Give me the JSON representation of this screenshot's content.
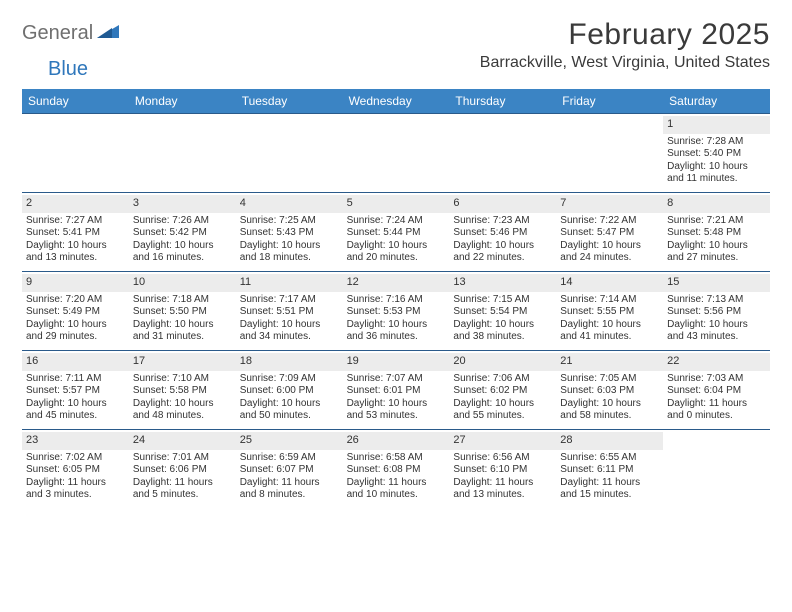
{
  "logo": {
    "gray": "General",
    "blue": "Blue"
  },
  "title": "February 2025",
  "subtitle": "Barrackville, West Virginia, United States",
  "colors": {
    "header_bar": "#3b84c4",
    "header_text": "#ffffff",
    "week_divider": "#2a5a8a",
    "daynum_bg": "#ececec",
    "logo_gray": "#6f6f6f",
    "logo_blue": "#2f77bb",
    "body_text": "#333333"
  },
  "day_names": [
    "Sunday",
    "Monday",
    "Tuesday",
    "Wednesday",
    "Thursday",
    "Friday",
    "Saturday"
  ],
  "weeks": [
    [
      {
        "n": "",
        "empty": true
      },
      {
        "n": "",
        "empty": true
      },
      {
        "n": "",
        "empty": true
      },
      {
        "n": "",
        "empty": true
      },
      {
        "n": "",
        "empty": true
      },
      {
        "n": "",
        "empty": true
      },
      {
        "n": "1",
        "sunrise": "Sunrise: 7:28 AM",
        "sunset": "Sunset: 5:40 PM",
        "day1": "Daylight: 10 hours",
        "day2": "and 11 minutes."
      }
    ],
    [
      {
        "n": "2",
        "sunrise": "Sunrise: 7:27 AM",
        "sunset": "Sunset: 5:41 PM",
        "day1": "Daylight: 10 hours",
        "day2": "and 13 minutes."
      },
      {
        "n": "3",
        "sunrise": "Sunrise: 7:26 AM",
        "sunset": "Sunset: 5:42 PM",
        "day1": "Daylight: 10 hours",
        "day2": "and 16 minutes."
      },
      {
        "n": "4",
        "sunrise": "Sunrise: 7:25 AM",
        "sunset": "Sunset: 5:43 PM",
        "day1": "Daylight: 10 hours",
        "day2": "and 18 minutes."
      },
      {
        "n": "5",
        "sunrise": "Sunrise: 7:24 AM",
        "sunset": "Sunset: 5:44 PM",
        "day1": "Daylight: 10 hours",
        "day2": "and 20 minutes."
      },
      {
        "n": "6",
        "sunrise": "Sunrise: 7:23 AM",
        "sunset": "Sunset: 5:46 PM",
        "day1": "Daylight: 10 hours",
        "day2": "and 22 minutes."
      },
      {
        "n": "7",
        "sunrise": "Sunrise: 7:22 AM",
        "sunset": "Sunset: 5:47 PM",
        "day1": "Daylight: 10 hours",
        "day2": "and 24 minutes."
      },
      {
        "n": "8",
        "sunrise": "Sunrise: 7:21 AM",
        "sunset": "Sunset: 5:48 PM",
        "day1": "Daylight: 10 hours",
        "day2": "and 27 minutes."
      }
    ],
    [
      {
        "n": "9",
        "sunrise": "Sunrise: 7:20 AM",
        "sunset": "Sunset: 5:49 PM",
        "day1": "Daylight: 10 hours",
        "day2": "and 29 minutes."
      },
      {
        "n": "10",
        "sunrise": "Sunrise: 7:18 AM",
        "sunset": "Sunset: 5:50 PM",
        "day1": "Daylight: 10 hours",
        "day2": "and 31 minutes."
      },
      {
        "n": "11",
        "sunrise": "Sunrise: 7:17 AM",
        "sunset": "Sunset: 5:51 PM",
        "day1": "Daylight: 10 hours",
        "day2": "and 34 minutes."
      },
      {
        "n": "12",
        "sunrise": "Sunrise: 7:16 AM",
        "sunset": "Sunset: 5:53 PM",
        "day1": "Daylight: 10 hours",
        "day2": "and 36 minutes."
      },
      {
        "n": "13",
        "sunrise": "Sunrise: 7:15 AM",
        "sunset": "Sunset: 5:54 PM",
        "day1": "Daylight: 10 hours",
        "day2": "and 38 minutes."
      },
      {
        "n": "14",
        "sunrise": "Sunrise: 7:14 AM",
        "sunset": "Sunset: 5:55 PM",
        "day1": "Daylight: 10 hours",
        "day2": "and 41 minutes."
      },
      {
        "n": "15",
        "sunrise": "Sunrise: 7:13 AM",
        "sunset": "Sunset: 5:56 PM",
        "day1": "Daylight: 10 hours",
        "day2": "and 43 minutes."
      }
    ],
    [
      {
        "n": "16",
        "sunrise": "Sunrise: 7:11 AM",
        "sunset": "Sunset: 5:57 PM",
        "day1": "Daylight: 10 hours",
        "day2": "and 45 minutes."
      },
      {
        "n": "17",
        "sunrise": "Sunrise: 7:10 AM",
        "sunset": "Sunset: 5:58 PM",
        "day1": "Daylight: 10 hours",
        "day2": "and 48 minutes."
      },
      {
        "n": "18",
        "sunrise": "Sunrise: 7:09 AM",
        "sunset": "Sunset: 6:00 PM",
        "day1": "Daylight: 10 hours",
        "day2": "and 50 minutes."
      },
      {
        "n": "19",
        "sunrise": "Sunrise: 7:07 AM",
        "sunset": "Sunset: 6:01 PM",
        "day1": "Daylight: 10 hours",
        "day2": "and 53 minutes."
      },
      {
        "n": "20",
        "sunrise": "Sunrise: 7:06 AM",
        "sunset": "Sunset: 6:02 PM",
        "day1": "Daylight: 10 hours",
        "day2": "and 55 minutes."
      },
      {
        "n": "21",
        "sunrise": "Sunrise: 7:05 AM",
        "sunset": "Sunset: 6:03 PM",
        "day1": "Daylight: 10 hours",
        "day2": "and 58 minutes."
      },
      {
        "n": "22",
        "sunrise": "Sunrise: 7:03 AM",
        "sunset": "Sunset: 6:04 PM",
        "day1": "Daylight: 11 hours",
        "day2": "and 0 minutes."
      }
    ],
    [
      {
        "n": "23",
        "sunrise": "Sunrise: 7:02 AM",
        "sunset": "Sunset: 6:05 PM",
        "day1": "Daylight: 11 hours",
        "day2": "and 3 minutes."
      },
      {
        "n": "24",
        "sunrise": "Sunrise: 7:01 AM",
        "sunset": "Sunset: 6:06 PM",
        "day1": "Daylight: 11 hours",
        "day2": "and 5 minutes."
      },
      {
        "n": "25",
        "sunrise": "Sunrise: 6:59 AM",
        "sunset": "Sunset: 6:07 PM",
        "day1": "Daylight: 11 hours",
        "day2": "and 8 minutes."
      },
      {
        "n": "26",
        "sunrise": "Sunrise: 6:58 AM",
        "sunset": "Sunset: 6:08 PM",
        "day1": "Daylight: 11 hours",
        "day2": "and 10 minutes."
      },
      {
        "n": "27",
        "sunrise": "Sunrise: 6:56 AM",
        "sunset": "Sunset: 6:10 PM",
        "day1": "Daylight: 11 hours",
        "day2": "and 13 minutes."
      },
      {
        "n": "28",
        "sunrise": "Sunrise: 6:55 AM",
        "sunset": "Sunset: 6:11 PM",
        "day1": "Daylight: 11 hours",
        "day2": "and 15 minutes."
      },
      {
        "n": "",
        "empty": true
      }
    ]
  ]
}
